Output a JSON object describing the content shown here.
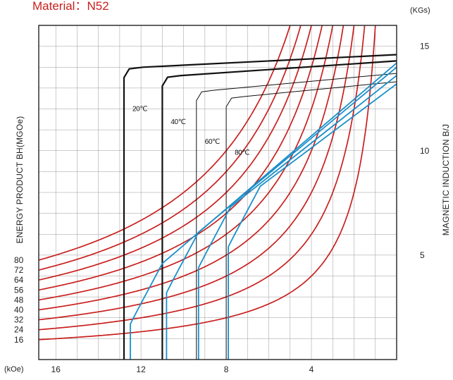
{
  "chart_data": {
    "type": "line",
    "title": "Material：N52",
    "x_unit": "(kOe)",
    "right_unit": "(KGs)",
    "left_axis_label": "ENERGY PRODUCT BH(MGOe)",
    "right_axis_label": "MAGNETIC INDUCTION B/J",
    "x_ticks": [
      "16",
      "12",
      "8",
      "4"
    ],
    "x_range": [
      16.8,
      0
    ],
    "right_ticks": [
      "15",
      "10",
      "5"
    ],
    "right_range": [
      0,
      16
    ],
    "bh_labels": [
      "80",
      "72",
      "64",
      "56",
      "48",
      "40",
      "32",
      "24",
      "16"
    ],
    "grid": true,
    "colors": {
      "bh": "#c8201e",
      "j_curve": "#111111",
      "b_curve": "#1a8fc9",
      "grid": "#9a9a9a",
      "title": "#c8201e"
    },
    "temperatures": [
      {
        "label": "20℃",
        "hcj": 12.8,
        "knee_j": 14.0,
        "j_end": 14.6,
        "hcb": 12.5,
        "knee_b": 2.3,
        "b_end": 14.2,
        "bold": true
      },
      {
        "label": "40℃",
        "hcj": 11.0,
        "knee_j": 13.6,
        "j_end": 14.3,
        "hcb": 10.8,
        "knee_b": 3.8,
        "b_end": 14.0,
        "bold": true
      },
      {
        "label": "60℃",
        "hcj": 9.4,
        "knee_j": 12.9,
        "j_end": 13.7,
        "hcb": 9.3,
        "knee_b": 5.0,
        "b_end": 13.6,
        "bold": false
      },
      {
        "label": "80℃",
        "hcj": 8.0,
        "knee_j": 12.6,
        "j_end": 13.3,
        "hcb": 7.9,
        "knee_b": 6.0,
        "b_end": 13.2,
        "bold": false
      }
    ]
  }
}
